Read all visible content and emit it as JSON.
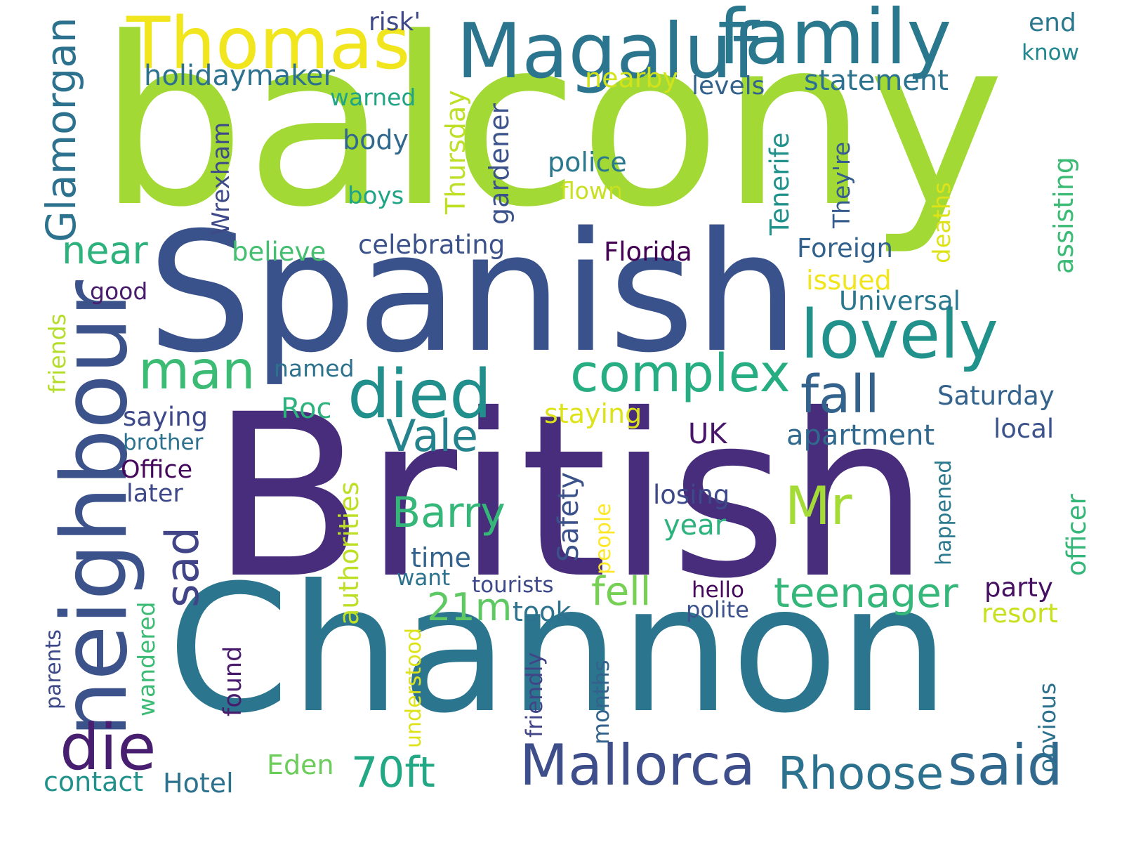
{
  "palette": {
    "lime": "#a2d934",
    "yellow": "#f2e41e",
    "indigo": "#472d7b",
    "navy": "#3a518b",
    "teal": "#277f8e",
    "teal2": "#2b758e",
    "green": "#2db27d",
    "green2": "#35b779",
    "lightgreen": "#6ccd5a",
    "blue": "#33638d",
    "slate": "#424086",
    "purple": "#440154",
    "yellowgreen": "#c8e020"
  },
  "words": [
    {
      "text": "balcony",
      "color": "#a2d934"
    },
    {
      "text": "British",
      "color": "#472d7b"
    },
    {
      "text": "Channon",
      "color": "#2b758e"
    },
    {
      "text": "Spanish",
      "color": "#3a528b"
    },
    {
      "text": "neighbour",
      "color": "#3b528b"
    },
    {
      "text": "Magaluf",
      "color": "#2b758e"
    },
    {
      "text": "family",
      "color": "#2a788e"
    },
    {
      "text": "Thomas",
      "color": "#f1e51d"
    },
    {
      "text": "lovely",
      "color": "#21918c"
    },
    {
      "text": "died",
      "color": "#21908d"
    },
    {
      "text": "complex",
      "color": "#26ad81"
    },
    {
      "text": "fall",
      "color": "#33638d"
    },
    {
      "text": "man",
      "color": "#3cbb75"
    },
    {
      "text": "die",
      "color": "#481f70"
    },
    {
      "text": "Mallorca",
      "color": "#3d4e8a"
    },
    {
      "text": "said",
      "color": "#31688e"
    },
    {
      "text": "Rhoose",
      "color": "#2c728e"
    },
    {
      "text": "70ft",
      "color": "#22a884"
    },
    {
      "text": "Mr",
      "color": "#a5db36"
    },
    {
      "text": "Barry",
      "color": "#35b779"
    },
    {
      "text": "Vale",
      "color": "#25838e"
    },
    {
      "text": "teenager",
      "color": "#35b779"
    },
    {
      "text": "fell",
      "color": "#75d054"
    },
    {
      "text": "21m",
      "color": "#5ec962"
    },
    {
      "text": "Glamorgan",
      "color": "#2c728e"
    },
    {
      "text": "near",
      "color": "#2db27d"
    },
    {
      "text": "sad",
      "color": "#414487"
    },
    {
      "text": "holidaymaker",
      "color": "#2c728e"
    },
    {
      "text": "risk'",
      "color": "#3e4989"
    },
    {
      "text": "end",
      "color": "#2a788e"
    },
    {
      "text": "know",
      "color": "#23888e"
    },
    {
      "text": "statement",
      "color": "#2c728e"
    },
    {
      "text": "levels",
      "color": "#33638d"
    },
    {
      "text": "nearby",
      "color": "#d2e21b"
    },
    {
      "text": "warned",
      "color": "#20a486"
    },
    {
      "text": "body",
      "color": "#31688e"
    },
    {
      "text": "Wrexham",
      "color": "#3e4989"
    },
    {
      "text": "boys",
      "color": "#20a486"
    },
    {
      "text": "Thursday",
      "color": "#bddf26"
    },
    {
      "text": "gardener",
      "color": "#3b528b"
    },
    {
      "text": "police",
      "color": "#2a788e"
    },
    {
      "text": "flown",
      "color": "#c8e020"
    },
    {
      "text": "Tenerife",
      "color": "#21918c"
    },
    {
      "text": "They're",
      "color": "#365c8d"
    },
    {
      "text": "assisting",
      "color": "#3cbb75"
    },
    {
      "text": "deaths",
      "color": "#dde318"
    },
    {
      "text": "celebrating",
      "color": "#3b528b"
    },
    {
      "text": "believe",
      "color": "#44bf70"
    },
    {
      "text": "Florida",
      "color": "#440154"
    },
    {
      "text": "Foreign",
      "color": "#33638d"
    },
    {
      "text": "issued",
      "color": "#f1e51d"
    },
    {
      "text": "Universal",
      "color": "#2a788e"
    },
    {
      "text": "good",
      "color": "#481b6d"
    },
    {
      "text": "friends",
      "color": "#b5de2b"
    },
    {
      "text": "named",
      "color": "#2c728e"
    },
    {
      "text": "Saturday",
      "color": "#33638d"
    },
    {
      "text": "saying",
      "color": "#3e4989"
    },
    {
      "text": "Roc",
      "color": "#2db27d"
    },
    {
      "text": "staying",
      "color": "#dde318"
    },
    {
      "text": "UK",
      "color": "#481769"
    },
    {
      "text": "apartment",
      "color": "#31688e"
    },
    {
      "text": "local",
      "color": "#3b528b"
    },
    {
      "text": "brother",
      "color": "#2c728e"
    },
    {
      "text": "Office",
      "color": "#46085c"
    },
    {
      "text": "later",
      "color": "#3e4989"
    },
    {
      "text": "authorities",
      "color": "#bddf26"
    },
    {
      "text": "Safety",
      "color": "#3b528b"
    },
    {
      "text": "people",
      "color": "#fde725"
    },
    {
      "text": "losing",
      "color": "#3e4989"
    },
    {
      "text": "year",
      "color": "#2db27d"
    },
    {
      "text": "happened",
      "color": "#2a788e"
    },
    {
      "text": "officer",
      "color": "#35b779"
    },
    {
      "text": "time",
      "color": "#33638d"
    },
    {
      "text": "want",
      "color": "#2c728e"
    },
    {
      "text": "tourists",
      "color": "#3e4989"
    },
    {
      "text": "hello",
      "color": "#46085c"
    },
    {
      "text": "party",
      "color": "#471063"
    },
    {
      "text": "polite",
      "color": "#3b528b"
    },
    {
      "text": "took",
      "color": "#2c728e"
    },
    {
      "text": "resort",
      "color": "#c8e020"
    },
    {
      "text": "wandered",
      "color": "#3cbb75"
    },
    {
      "text": "parents",
      "color": "#3e4989"
    },
    {
      "text": "found",
      "color": "#481b6d"
    },
    {
      "text": "understood",
      "color": "#dde318"
    },
    {
      "text": "friendly",
      "color": "#414487"
    },
    {
      "text": "months",
      "color": "#33638d"
    },
    {
      "text": "obvious",
      "color": "#2c728e"
    },
    {
      "text": "contact",
      "color": "#21918c"
    },
    {
      "text": "Hotel",
      "color": "#2c728e"
    },
    {
      "text": "Eden",
      "color": "#6ccd5a"
    }
  ]
}
